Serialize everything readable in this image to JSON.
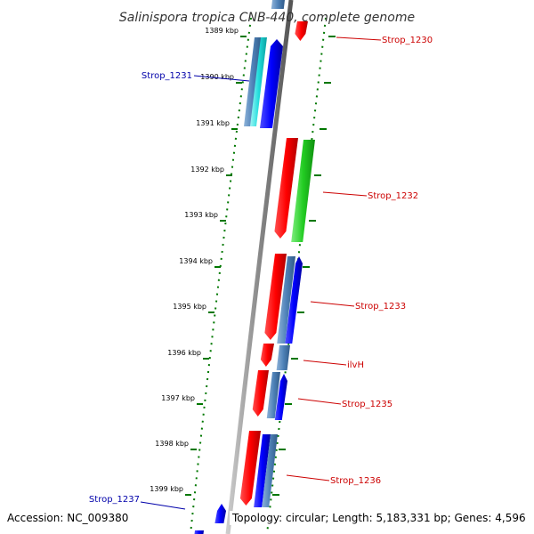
{
  "title": "Salinispora tropica CNB-440, complete genome",
  "footer": {
    "accession": "Accession: NC_009380",
    "topology": "Topology: circular; Length: 5,183,331 bp; Genes: 4,596"
  },
  "ticks": [
    "1389 kbp",
    "1390 kbp",
    "1391 kbp",
    "1392 kbp",
    "1393 kbp",
    "1394 kbp",
    "1395 kbp",
    "1396 kbp",
    "1397 kbp",
    "1398 kbp",
    "1399 kbp"
  ],
  "genes_right": [
    {
      "label": "Strop_1230"
    },
    {
      "label": "Strop_1232"
    },
    {
      "label": "Strop_1233"
    },
    {
      "label": "ilvH"
    },
    {
      "label": "Strop_1235"
    },
    {
      "label": "Strop_1236"
    }
  ],
  "genes_left": [
    {
      "label": "Strop_1231"
    },
    {
      "label": "Strop_1237"
    }
  ],
  "colors": {
    "forward_gene": "#ff0000",
    "reverse_gene": "#0000ff",
    "forward_label": "#cc0000",
    "reverse_label": "#0000aa",
    "cds_steelblue": "#4f82b8",
    "cds_cyan": "#22dddd",
    "cds_green": "#22cc22",
    "backbone": "#888888",
    "tick": "#007700"
  }
}
